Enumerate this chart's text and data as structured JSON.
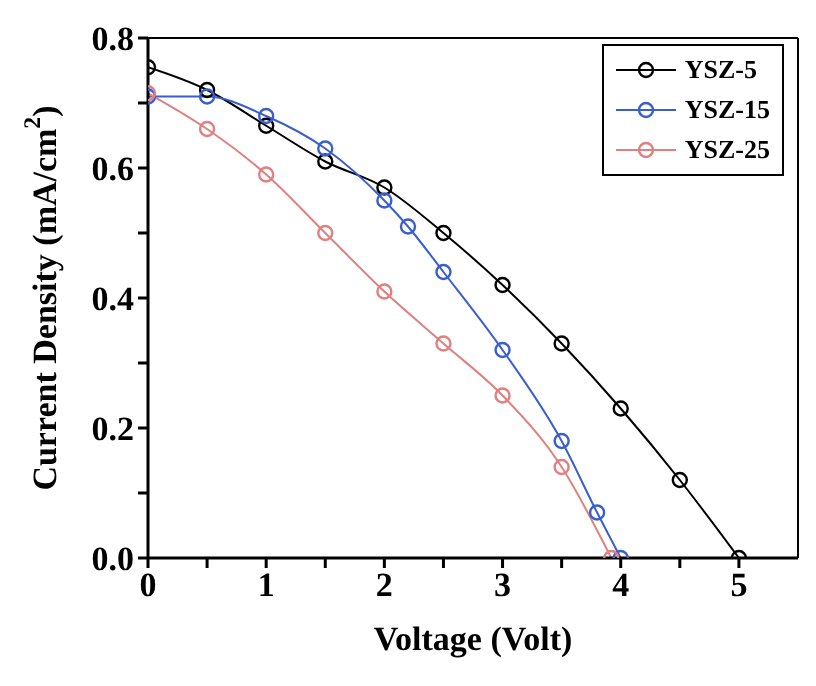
{
  "chart_data": {
    "type": "line",
    "xlabel": "Voltage (Volt)",
    "ylabel": "Current Density (mA/cm$^{2}$)",
    "xlim": [
      0,
      5.5
    ],
    "ylim": [
      0,
      0.8
    ],
    "xticks": [
      0,
      {
        "value": 0.5,
        "label": null
      },
      1,
      {
        "value": 1.5,
        "label": null
      },
      2,
      {
        "value": 2.5,
        "label": null
      },
      3,
      {
        "value": 3.5,
        "label": null
      },
      4,
      {
        "value": 4.5,
        "label": null
      },
      5
    ],
    "yticks": [
      {
        "value": 0,
        "label": "0.0"
      },
      {
        "value": 0.1,
        "label": null
      },
      0.2,
      {
        "value": 0.3,
        "label": null
      },
      0.4,
      {
        "value": 0.5,
        "label": null
      },
      0.6,
      {
        "value": 0.7,
        "label": null
      },
      0.8
    ],
    "legend": "top right",
    "marker": "circle",
    "series": [
      {
        "name": "YSZ-5",
        "color": "#000000",
        "x": [
          0,
          0.5,
          1,
          1.5,
          2,
          2.5,
          3,
          3.5,
          4,
          4.5,
          5
        ],
        "values": [
          0.755,
          0.72,
          0.665,
          0.61,
          0.57,
          0.5,
          0.42,
          0.33,
          0.23,
          0.12,
          0
        ]
      },
      {
        "name": "YSZ-15",
        "color": "#3a5fcd",
        "x": [
          0,
          0.5,
          1,
          1.5,
          2,
          2.2,
          2.5,
          3,
          3.5,
          3.8,
          4
        ],
        "values": [
          0.71,
          0.71,
          0.68,
          0.63,
          0.55,
          0.51,
          0.44,
          0.32,
          0.18,
          0.07,
          0
        ]
      },
      {
        "name": "YSZ-25",
        "color": "#e08080",
        "x": [
          0,
          0.5,
          1,
          1.5,
          2,
          2.5,
          3,
          3.5,
          3.92
        ],
        "values": [
          0.715,
          0.66,
          0.59,
          0.5,
          0.41,
          0.33,
          0.25,
          0.14,
          0
        ]
      }
    ]
  }
}
